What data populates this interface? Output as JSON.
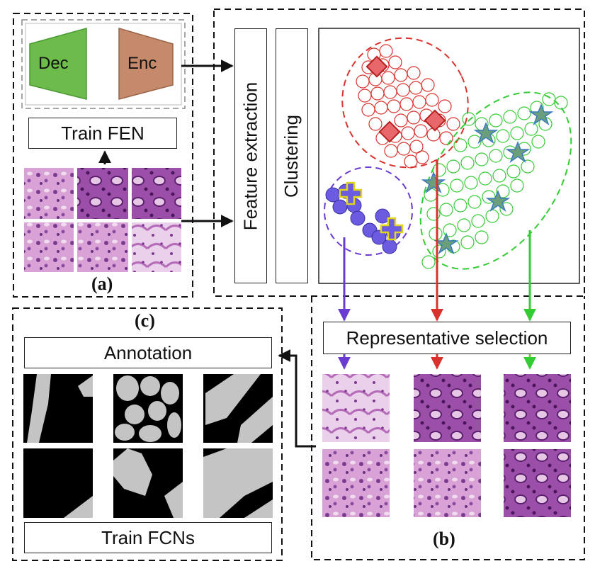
{
  "panels": {
    "a": "(a)",
    "b": "(b)",
    "c": "(c)"
  },
  "network": {
    "decoder": "Dec",
    "encoder": "Enc",
    "train_label": "Train FEN"
  },
  "pipeline": {
    "feature_extraction": "Feature extraction",
    "clustering": "Clustering",
    "selection": "Representative selection"
  },
  "annotation": {
    "title": "Annotation",
    "train_label": "Train FCNs"
  },
  "colors": {
    "dec_fill": "#6dbb4b",
    "enc_fill": "#c58a6c",
    "cluster_red": "#d9312b",
    "cluster_green": "#33cc33",
    "cluster_purple": "#6a3bd1",
    "arrow_red": "#d9312b",
    "arrow_green": "#33cc33",
    "arrow_purple": "#6a3bd1",
    "tissue_pink": "#c77fc0",
    "tissue_purple": "#8a3b9a"
  }
}
